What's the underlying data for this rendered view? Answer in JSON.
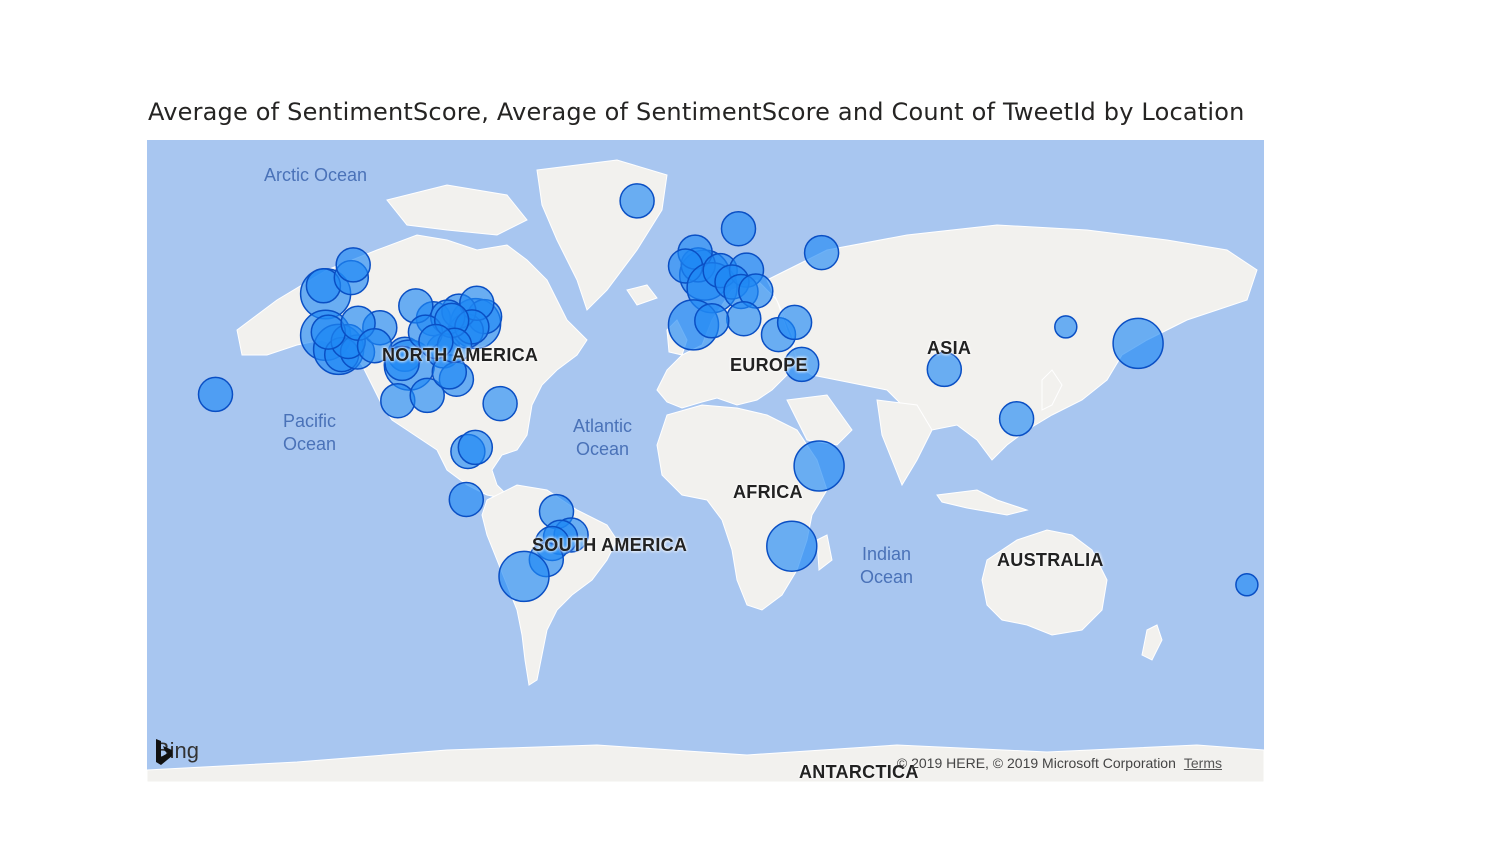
{
  "visual": {
    "title": "Average of SentimentScore, Average of SentimentScore and Count of TweetId by Location"
  },
  "map": {
    "ocean_labels": {
      "arctic": "Arctic Ocean",
      "pacific_line1": "Pacific",
      "pacific_line2": "Ocean",
      "atlantic_line1": "Atlantic",
      "atlantic_line2": "Ocean",
      "indian_line1": "Indian",
      "indian_line2": "Ocean"
    },
    "continent_labels": {
      "north_america": "NORTH AMERICA",
      "south_america": "SOUTH AMERICA",
      "europe": "EUROPE",
      "asia": "ASIA",
      "africa": "AFRICA",
      "australia": "AUSTRALIA",
      "antarctica": "ANTARCTICA"
    },
    "attribution": {
      "brand": "Bing",
      "copyright": "© 2019 HERE, © 2019 Microsoft Corporation",
      "terms": "Terms"
    },
    "colors": {
      "ocean": "#a8c6f0",
      "land": "#f2f1ee",
      "bubble_fill": "#1e88f5",
      "bubble_stroke": "#0a4fc4"
    },
    "bubbles": [
      {
        "lon": -122.4,
        "lat": 47.6,
        "size": 3
      },
      {
        "lon": -123.1,
        "lat": 49.3,
        "size": 2
      },
      {
        "lon": -122.4,
        "lat": 37.8,
        "size": 3
      },
      {
        "lon": -118.2,
        "lat": 34.1,
        "size": 3
      },
      {
        "lon": -117.2,
        "lat": 32.7,
        "size": 2
      },
      {
        "lon": -112.1,
        "lat": 33.4,
        "size": 2
      },
      {
        "lon": -104.9,
        "lat": 39.7,
        "size": 2
      },
      {
        "lon": -96.8,
        "lat": 32.8,
        "size": 2
      },
      {
        "lon": -95.4,
        "lat": 29.8,
        "size": 3
      },
      {
        "lon": -97.7,
        "lat": 30.3,
        "size": 2
      },
      {
        "lon": -87.6,
        "lat": 41.9,
        "size": 2
      },
      {
        "lon": -93.3,
        "lat": 44.9,
        "size": 2
      },
      {
        "lon": -84.4,
        "lat": 33.7,
        "size": 2
      },
      {
        "lon": -80.2,
        "lat": 25.8,
        "size": 2
      },
      {
        "lon": -74.0,
        "lat": 40.7,
        "size": 3
      },
      {
        "lon": -71.1,
        "lat": 42.4,
        "size": 2
      },
      {
        "lon": -77.0,
        "lat": 38.9,
        "size": 2
      },
      {
        "lon": -79.4,
        "lat": 43.7,
        "size": 2
      },
      {
        "lon": -73.6,
        "lat": 45.5,
        "size": 2
      },
      {
        "lon": -114.1,
        "lat": 51.0,
        "size": 2
      },
      {
        "lon": -113.5,
        "lat": 53.5,
        "size": 2
      },
      {
        "lon": -99.1,
        "lat": 19.4,
        "size": 2
      },
      {
        "lon": -89.6,
        "lat": 21.0,
        "size": 2
      },
      {
        "lon": -157.9,
        "lat": 21.3,
        "size": 2
      },
      {
        "lon": -83.0,
        "lat": 42.3,
        "size": 2
      },
      {
        "lon": -90.2,
        "lat": 38.6,
        "size": 2
      },
      {
        "lon": -82.5,
        "lat": 27.9,
        "size": 2
      },
      {
        "lon": -75.2,
        "lat": 39.9,
        "size": 2
      },
      {
        "lon": -81.7,
        "lat": 41.5,
        "size": 2
      },
      {
        "lon": -80.8,
        "lat": 35.2,
        "size": 2
      },
      {
        "lon": -86.8,
        "lat": 36.2,
        "size": 2
      },
      {
        "lon": -115.1,
        "lat": 36.2,
        "size": 2
      },
      {
        "lon": -121.5,
        "lat": 38.6,
        "size": 2
      },
      {
        "lon": -111.9,
        "lat": 40.8,
        "size": 2
      },
      {
        "lon": -106.6,
        "lat": 35.1,
        "size": 2
      },
      {
        "lon": -66.1,
        "lat": 18.5,
        "size": 2
      },
      {
        "lon": -76.5,
        "lat": 3.4,
        "size": 2
      },
      {
        "lon": -74.1,
        "lat": 4.7,
        "size": 2
      },
      {
        "lon": -77.0,
        "lat": -12.0,
        "size": 2
      },
      {
        "lon": -47.9,
        "lat": -15.8,
        "size": 2
      },
      {
        "lon": -43.2,
        "lat": -22.9,
        "size": 2
      },
      {
        "lon": -46.6,
        "lat": -23.6,
        "size": 2
      },
      {
        "lon": -49.3,
        "lat": -25.4,
        "size": 2
      },
      {
        "lon": -51.2,
        "lat": -30.0,
        "size": 2
      },
      {
        "lon": -58.4,
        "lat": -34.6,
        "size": 3
      },
      {
        "lon": -21.9,
        "lat": 64.1,
        "size": 2
      },
      {
        "lon": 10.8,
        "lat": 59.9,
        "size": 2
      },
      {
        "lon": -0.1,
        "lat": 51.5,
        "size": 3
      },
      {
        "lon": -2.2,
        "lat": 53.5,
        "size": 2
      },
      {
        "lon": -3.2,
        "lat": 55.9,
        "size": 2
      },
      {
        "lon": -6.3,
        "lat": 53.3,
        "size": 2
      },
      {
        "lon": 2.3,
        "lat": 48.9,
        "size": 3
      },
      {
        "lon": 4.9,
        "lat": 52.4,
        "size": 2
      },
      {
        "lon": 13.4,
        "lat": 52.5,
        "size": 2
      },
      {
        "lon": 8.7,
        "lat": 50.1,
        "size": 2
      },
      {
        "lon": 11.6,
        "lat": 48.1,
        "size": 2
      },
      {
        "lon": 16.4,
        "lat": 48.2,
        "size": 2
      },
      {
        "lon": 12.5,
        "lat": 41.9,
        "size": 2
      },
      {
        "lon": -3.7,
        "lat": 40.4,
        "size": 3
      },
      {
        "lon": 2.2,
        "lat": 41.4,
        "size": 2
      },
      {
        "lon": 23.7,
        "lat": 37.98,
        "size": 2
      },
      {
        "lon": 28.9,
        "lat": 41.0,
        "size": 2
      },
      {
        "lon": 37.6,
        "lat": 55.8,
        "size": 2
      },
      {
        "lon": 31.2,
        "lat": 30.0,
        "size": 2
      },
      {
        "lon": 36.8,
        "lat": -1.3,
        "size": 3
      },
      {
        "lon": 28.0,
        "lat": -26.2,
        "size": 3
      },
      {
        "lon": 77.2,
        "lat": 28.6,
        "size": 2
      },
      {
        "lon": 100.5,
        "lat": 13.8,
        "size": 2
      },
      {
        "lon": 116.4,
        "lat": 39.9,
        "size": 1
      },
      {
        "lon": 139.7,
        "lat": 35.7,
        "size": 3
      },
      {
        "lon": 174.8,
        "lat": -36.8,
        "size": 1
      }
    ]
  }
}
